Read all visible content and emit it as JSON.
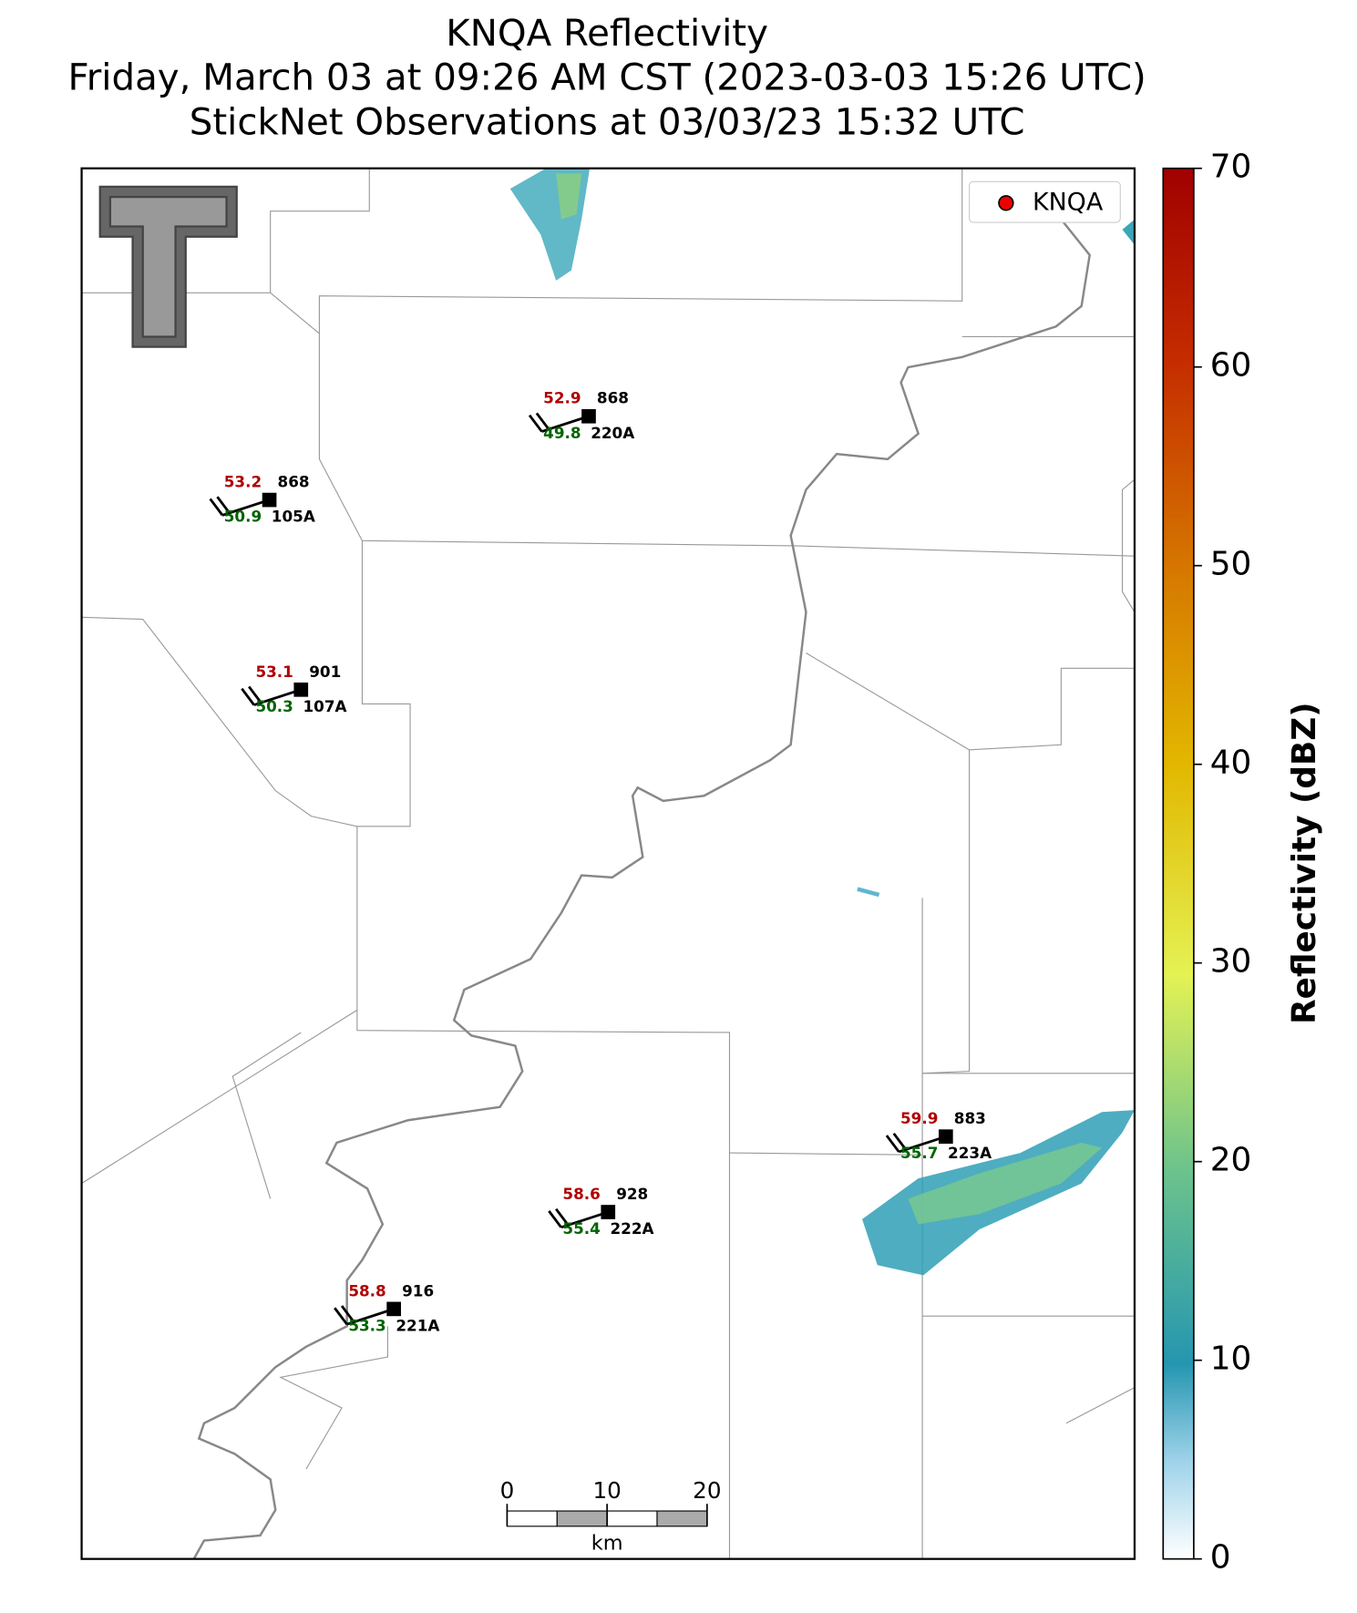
{
  "title": [
    "KNQA Reflectivity",
    "Friday, March 03 at 09:26 AM CST (2023-03-03 15:26 UTC)",
    "StickNet Observations at 03/03/23 15:32 UTC"
  ],
  "legend": "KNQA",
  "stations": [
    {
      "temperature": 52.9,
      "dewpoint": 49.8,
      "pressure": 868,
      "id": "220A"
    },
    {
      "temperature": 53.2,
      "dewpoint": 50.9,
      "pressure": 868,
      "id": "105A"
    },
    {
      "temperature": 53.1,
      "dewpoint": 50.3,
      "pressure": 901,
      "id": "107A"
    },
    {
      "temperature": 59.9,
      "dewpoint": 55.7,
      "pressure": 883,
      "id": "223A"
    },
    {
      "temperature": 58.6,
      "dewpoint": 55.4,
      "pressure": 928,
      "id": "222A"
    },
    {
      "temperature": 58.8,
      "dewpoint": 53.3,
      "pressure": 916,
      "id": "221A"
    }
  ],
  "colorbar": {
    "label": "Reflectivity (dBZ)",
    "lim": [
      0,
      70
    ],
    "ticks": [
      0,
      10,
      20,
      30,
      40,
      50,
      60,
      70
    ]
  },
  "scalebar": {
    "ticks": [
      0,
      10,
      20
    ],
    "unit": "km"
  }
}
